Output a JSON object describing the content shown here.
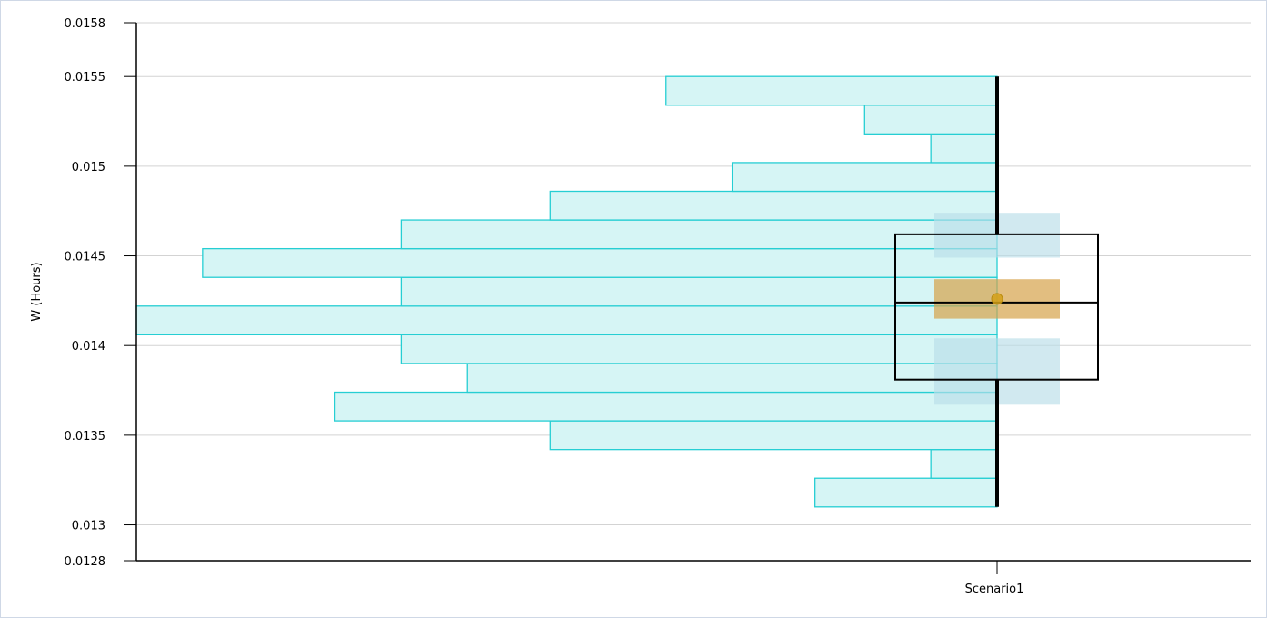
{
  "chart_data": {
    "type": "histogram-boxplot",
    "ylabel": "W (Hours)",
    "ylim": [
      0.0128,
      0.0158
    ],
    "y_ticks": [
      "0.0128",
      "0.013",
      "0.0135",
      "0.014",
      "0.0145",
      "0.015",
      "0.0155",
      "0.0158"
    ],
    "category": "Scenario1",
    "histogram": {
      "bins": [
        {
          "y0": 0.0131,
          "y1": 0.01326,
          "count": 11
        },
        {
          "y0": 0.01326,
          "y1": 0.01342,
          "count": 4
        },
        {
          "y0": 0.01342,
          "y1": 0.01358,
          "count": 27
        },
        {
          "y0": 0.01358,
          "y1": 0.01374,
          "count": 40
        },
        {
          "y0": 0.01374,
          "y1": 0.0139,
          "count": 32
        },
        {
          "y0": 0.0139,
          "y1": 0.01406,
          "count": 36
        },
        {
          "y0": 0.01406,
          "y1": 0.01422,
          "count": 52
        },
        {
          "y0": 0.01422,
          "y1": 0.01438,
          "count": 36
        },
        {
          "y0": 0.01438,
          "y1": 0.01454,
          "count": 48
        },
        {
          "y0": 0.01454,
          "y1": 0.0147,
          "count": 36
        },
        {
          "y0": 0.0147,
          "y1": 0.01486,
          "count": 27
        },
        {
          "y0": 0.01486,
          "y1": 0.01502,
          "count": 16
        },
        {
          "y0": 0.01502,
          "y1": 0.01518,
          "count": 4
        },
        {
          "y0": 0.01518,
          "y1": 0.01534,
          "count": 8
        },
        {
          "y0": 0.01534,
          "y1": 0.0155,
          "count": 20
        }
      ],
      "max_count": 52
    },
    "boxplot": {
      "min": 0.0131,
      "q1": 0.01381,
      "median": 0.01424,
      "q3": 0.01462,
      "max": 0.0155,
      "mean": 0.01426
    },
    "confidence_bands": {
      "upper_quartile": [
        0.01449,
        0.01474
      ],
      "median": [
        0.01415,
        0.01437
      ],
      "lower_quartile": [
        0.01367,
        0.01404
      ]
    },
    "colors": {
      "histogram_fill": "#d6f5f5",
      "histogram_stroke": "#26ced3",
      "box_stroke": "#000000",
      "quartile_band": "#b9dde8",
      "median_band": "#d6a24a",
      "mean_marker": "#d4a017",
      "grid": "#d3d3d3"
    }
  }
}
